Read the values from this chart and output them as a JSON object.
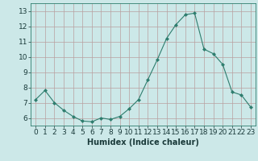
{
  "xlabel": "Humidex (Indice chaleur)",
  "x": [
    0,
    1,
    2,
    3,
    4,
    5,
    6,
    7,
    8,
    9,
    10,
    11,
    12,
    13,
    14,
    15,
    16,
    17,
    18,
    19,
    20,
    21,
    22,
    23
  ],
  "y": [
    7.2,
    7.8,
    7.0,
    6.5,
    6.1,
    5.8,
    5.75,
    6.0,
    5.9,
    6.1,
    6.6,
    7.2,
    8.5,
    9.8,
    11.2,
    12.1,
    12.75,
    12.85,
    10.5,
    10.2,
    9.5,
    7.7,
    7.5,
    6.7
  ],
  "line_color": "#2e7d6e",
  "marker": "D",
  "marker_size": 2,
  "bg_color": "#cce8e8",
  "grid_color_major": "#b8a0a0",
  "ylim": [
    5.5,
    13.5
  ],
  "xlim": [
    -0.5,
    23.5
  ],
  "yticks": [
    6,
    7,
    8,
    9,
    10,
    11,
    12,
    13
  ],
  "xticks": [
    0,
    1,
    2,
    3,
    4,
    5,
    6,
    7,
    8,
    9,
    10,
    11,
    12,
    13,
    14,
    15,
    16,
    17,
    18,
    19,
    20,
    21,
    22,
    23
  ],
  "xlabel_fontsize": 7,
  "tick_fontsize": 6.5
}
